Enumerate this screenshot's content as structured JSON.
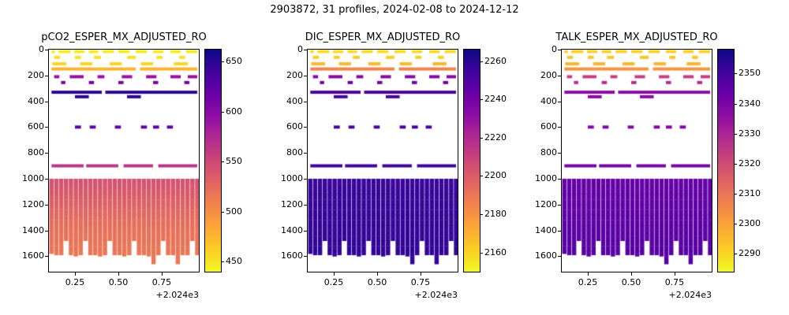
{
  "figure": {
    "title": "2903872, 31 profiles, 2024-02-08 to 2024-12-12",
    "background": "#ffffff"
  },
  "colormap": {
    "name": "plasma_r",
    "plasma_stops": [
      "#0d0887",
      "#41049d",
      "#6a00a8",
      "#8f0da4",
      "#b12a90",
      "#cc4778",
      "#e16462",
      "#f2844b",
      "#fca636",
      "#fcce25",
      "#f0f921"
    ]
  },
  "axes": {
    "x_ticks": [
      2024.25,
      2024.5,
      2024.75
    ],
    "x_tick_labels": [
      "0.25",
      "0.50",
      "0.75"
    ],
    "x_offset_label": "+2.024e3",
    "x_range": [
      2024.1,
      2024.964
    ],
    "y_ticks": [
      0,
      200,
      400,
      600,
      800,
      1000,
      1200,
      1400,
      1600
    ],
    "y_range": [
      0,
      1720
    ],
    "y_inverted": true
  },
  "sampling": {
    "profile_count": 31,
    "date_range": "2024-02-08 to 2024-12-12",
    "times": [
      2024.115,
      2024.143,
      2024.171,
      2024.199,
      2024.227,
      2024.255,
      2024.283,
      2024.311,
      2024.339,
      2024.367,
      2024.395,
      2024.423,
      2024.451,
      2024.479,
      2024.507,
      2024.535,
      2024.563,
      2024.591,
      2024.619,
      2024.647,
      2024.675,
      2024.703,
      2024.731,
      2024.759,
      2024.787,
      2024.815,
      2024.843,
      2024.871,
      2024.899,
      2024.927,
      2024.955
    ],
    "column_width": 0.0248,
    "deep_top": 1000,
    "deep_bottoms": [
      1580,
      1590,
      1590,
      1480,
      1590,
      1600,
      1590,
      1480,
      1590,
      1590,
      1600,
      1590,
      1480,
      1590,
      1590,
      1600,
      1590,
      1480,
      1590,
      1590,
      1600,
      1660,
      1590,
      1480,
      1590,
      1590,
      1660,
      1590,
      1590,
      1480,
      1590
    ],
    "rows": [
      {
        "depth": 15,
        "segments": [
          [
            2024.115,
            2024.135
          ],
          [
            2024.155,
            2024.225
          ],
          [
            2024.245,
            2024.305
          ],
          [
            2024.33,
            2024.385
          ],
          [
            2024.41,
            2024.475
          ],
          [
            2024.5,
            2024.565
          ],
          [
            2024.6,
            2024.665
          ],
          [
            2024.7,
            2024.76
          ],
          [
            2024.8,
            2024.86
          ],
          [
            2024.89,
            2024.955
          ]
        ]
      },
      {
        "depth": 60,
        "segments": [
          [
            2024.13,
            2024.165
          ],
          [
            2024.25,
            2024.285
          ],
          [
            2024.36,
            2024.4
          ],
          [
            2024.55,
            2024.6
          ],
          [
            2024.72,
            2024.755
          ],
          [
            2024.85,
            2024.885
          ]
        ]
      },
      {
        "depth": 110,
        "segments": [
          [
            2024.12,
            2024.2
          ],
          [
            2024.28,
            2024.35
          ],
          [
            2024.45,
            2024.52
          ],
          [
            2024.63,
            2024.7
          ],
          [
            2024.82,
            2024.9
          ]
        ]
      },
      {
        "depth": 150,
        "segments": [
          [
            2024.115,
            2024.6
          ],
          [
            2024.625,
            2024.955
          ]
        ]
      },
      {
        "depth": 210,
        "segments": [
          [
            2024.13,
            2024.16
          ],
          [
            2024.22,
            2024.3
          ],
          [
            2024.38,
            2024.42
          ],
          [
            2024.52,
            2024.58
          ],
          [
            2024.66,
            2024.72
          ],
          [
            2024.8,
            2024.86
          ],
          [
            2024.9,
            2024.955
          ]
        ]
      },
      {
        "depth": 255,
        "segments": [
          [
            2024.17,
            2024.195
          ],
          [
            2024.33,
            2024.36
          ],
          [
            2024.5,
            2024.53
          ],
          [
            2024.7,
            2024.73
          ],
          [
            2024.88,
            2024.91
          ]
        ]
      },
      {
        "depth": 330,
        "segments": [
          [
            2024.115,
            2024.405
          ],
          [
            2024.425,
            2024.955
          ]
        ]
      },
      {
        "depth": 365,
        "segments": [
          [
            2024.25,
            2024.33
          ],
          [
            2024.55,
            2024.63
          ]
        ]
      },
      {
        "depth": 600,
        "segments": [
          [
            2024.25,
            2024.285
          ],
          [
            2024.335,
            2024.37
          ],
          [
            2024.48,
            2024.515
          ],
          [
            2024.63,
            2024.665
          ],
          [
            2024.7,
            2024.735
          ],
          [
            2024.78,
            2024.815
          ]
        ]
      },
      {
        "depth": 900,
        "segments": [
          [
            2024.115,
            2024.3
          ],
          [
            2024.315,
            2024.5
          ],
          [
            2024.53,
            2024.7
          ],
          [
            2024.73,
            2024.955
          ]
        ]
      }
    ]
  },
  "chart_data": [
    {
      "id": "pco2",
      "type": "heatmap",
      "title": "pCO2_ESPER_MX_ADJUSTED_RO",
      "vmin": 440,
      "vmax": 662,
      "colorbar_ticks": [
        450,
        500,
        550,
        600,
        650
      ],
      "deep_values_by_depth": [
        [
          1000,
          545
        ],
        [
          1100,
          538
        ],
        [
          1250,
          528
        ],
        [
          1400,
          520
        ],
        [
          1660,
          515
        ]
      ],
      "row_values": [
        448,
        452,
        458,
        478,
        592,
        612,
        648,
        650,
        625,
        565
      ]
    },
    {
      "id": "dic",
      "type": "heatmap",
      "title": "DIC_ESPER_MX_ADJUSTED_RO",
      "vmin": 2150,
      "vmax": 2266,
      "colorbar_ticks": [
        2160,
        2180,
        2200,
        2220,
        2240,
        2260
      ],
      "deep_values_by_depth": [
        [
          1000,
          2256
        ],
        [
          1660,
          2258
        ]
      ],
      "row_values": [
        2158,
        2162,
        2168,
        2185,
        2235,
        2242,
        2252,
        2253,
        2254,
        2255
      ]
    },
    {
      "id": "talk",
      "type": "heatmap",
      "title": "TALK_ESPER_MX_ADJUSTED_RO",
      "vmin": 2284,
      "vmax": 2358,
      "colorbar_ticks": [
        2290,
        2300,
        2310,
        2320,
        2330,
        2340,
        2350
      ],
      "deep_values_by_depth": [
        [
          1000,
          2344
        ],
        [
          1660,
          2347
        ]
      ],
      "row_values": [
        2291,
        2293,
        2296,
        2303,
        2323,
        2328,
        2337,
        2338,
        2339,
        2341
      ]
    }
  ]
}
